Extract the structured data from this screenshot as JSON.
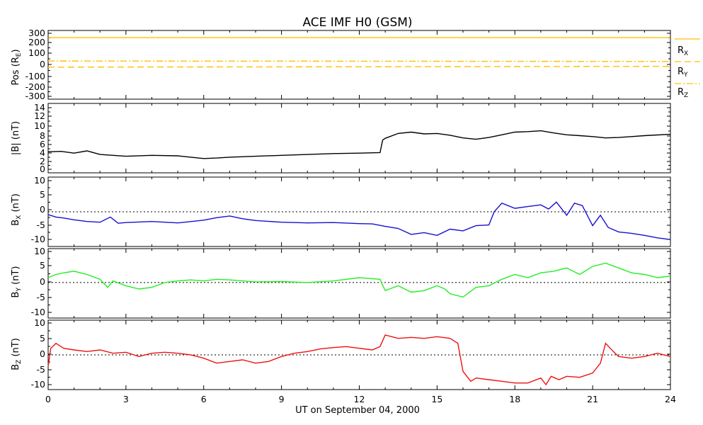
{
  "chart_data": {
    "type": "line",
    "title": "ACE IMF H0 (GSM)",
    "xlabel": "UT on September 04, 2000",
    "xlim": [
      0,
      24
    ],
    "xticks": [
      "0",
      "3",
      "6",
      "9",
      "12",
      "15",
      "18",
      "21",
      "24"
    ],
    "panels": [
      {
        "id": "pos",
        "ylabel": "Pos (R",
        "ylabel_sub": "E",
        "ylabel_tail": ")",
        "ylim": [
          -350,
          320
        ],
        "yticks": [
          "300",
          "200",
          "100",
          "0",
          "-100",
          "-200",
          "-300"
        ],
        "zero_line": false,
        "series": [
          {
            "name": "R",
            "sub": "X",
            "color": "#ffc000",
            "dash": "solid",
            "values": [
              [
                0,
                250
              ],
              [
                24,
                250
              ]
            ]
          },
          {
            "name": "R",
            "sub": "Y",
            "color": "#ffc000",
            "dash": "dashed",
            "values": [
              [
                0,
                -38
              ],
              [
                6,
                -36
              ],
              [
                12,
                -34
              ],
              [
                18,
                -32
              ],
              [
                24,
                -30
              ]
            ]
          },
          {
            "name": "R",
            "sub": "Z",
            "color": "#ffc000",
            "dash": "dashdot",
            "values": [
              [
                0,
                22
              ],
              [
                6,
                21
              ],
              [
                12,
                20
              ],
              [
                18,
                19
              ],
              [
                24,
                18
              ]
            ]
          }
        ]
      },
      {
        "id": "bmag",
        "ylabel": "|B| (nT)",
        "ylim": [
          -0.5,
          15
        ],
        "yticks": [
          "14",
          "12",
          "10",
          "8",
          "6",
          "4",
          "2",
          "0"
        ],
        "zero_line": false,
        "series": [
          {
            "color": "#000000",
            "values": [
              [
                0,
                4.2
              ],
              [
                0.5,
                4.3
              ],
              [
                1,
                3.9
              ],
              [
                1.5,
                4.4
              ],
              [
                2,
                3.6
              ],
              [
                3,
                3.2
              ],
              [
                4,
                3.4
              ],
              [
                5,
                3.3
              ],
              [
                5.5,
                3.0
              ],
              [
                6,
                2.7
              ],
              [
                6.5,
                2.8
              ],
              [
                7,
                3.0
              ],
              [
                8,
                3.2
              ],
              [
                9,
                3.4
              ],
              [
                10,
                3.6
              ],
              [
                11,
                3.8
              ],
              [
                12,
                3.9
              ],
              [
                12.8,
                4.0
              ],
              [
                12.9,
                6.8
              ],
              [
                13,
                7.2
              ],
              [
                13.5,
                8.3
              ],
              [
                14,
                8.6
              ],
              [
                14.5,
                8.2
              ],
              [
                15,
                8.3
              ],
              [
                15.5,
                7.9
              ],
              [
                16,
                7.3
              ],
              [
                16.5,
                7.0
              ],
              [
                17,
                7.4
              ],
              [
                17.5,
                8.0
              ],
              [
                18,
                8.6
              ],
              [
                18.5,
                8.7
              ],
              [
                19,
                8.9
              ],
              [
                19.5,
                8.4
              ],
              [
                20,
                8.0
              ],
              [
                20.5,
                7.8
              ],
              [
                21,
                7.6
              ],
              [
                21.5,
                7.3
              ],
              [
                22,
                7.4
              ],
              [
                23,
                7.8
              ],
              [
                24,
                8.1
              ]
            ]
          }
        ]
      },
      {
        "id": "bx",
        "ylabel": "B",
        "ylabel_sub": "X",
        "ylabel_tail": " (nT)",
        "ylim": [
          -10,
          10
        ],
        "yticks": [
          "10",
          "5",
          "0",
          "-5",
          "-10"
        ],
        "zero_line": true,
        "series": [
          {
            "color": "#1a0fcf",
            "values": [
              [
                0,
                -0.8
              ],
              [
                0.3,
                -1.5
              ],
              [
                0.6,
                -1.8
              ],
              [
                1,
                -2.3
              ],
              [
                1.5,
                -2.8
              ],
              [
                2,
                -3.0
              ],
              [
                2.4,
                -1.5
              ],
              [
                2.7,
                -3.3
              ],
              [
                3,
                -3.1
              ],
              [
                4,
                -2.8
              ],
              [
                5,
                -3.2
              ],
              [
                6,
                -2.4
              ],
              [
                6.5,
                -1.7
              ],
              [
                7,
                -1.2
              ],
              [
                7.5,
                -2.0
              ],
              [
                8,
                -2.5
              ],
              [
                9,
                -3.0
              ],
              [
                10,
                -3.2
              ],
              [
                11,
                -3.1
              ],
              [
                12,
                -3.4
              ],
              [
                12.5,
                -3.5
              ],
              [
                13,
                -4.2
              ],
              [
                13.5,
                -4.8
              ],
              [
                14,
                -6.5
              ],
              [
                14.5,
                -6.0
              ],
              [
                15,
                -6.8
              ],
              [
                15.5,
                -5.0
              ],
              [
                16,
                -5.5
              ],
              [
                16.5,
                -4.0
              ],
              [
                17,
                -3.8
              ],
              [
                17.2,
                0
              ],
              [
                17.5,
                2.5
              ],
              [
                18,
                1.0
              ],
              [
                18.5,
                1.5
              ],
              [
                19,
                2.0
              ],
              [
                19.3,
                0.8
              ],
              [
                19.6,
                2.8
              ],
              [
                20,
                -1.0
              ],
              [
                20.3,
                2.5
              ],
              [
                20.6,
                1.8
              ],
              [
                21,
                -4.0
              ],
              [
                21.3,
                -1.0
              ],
              [
                21.6,
                -4.5
              ],
              [
                22,
                -5.8
              ],
              [
                22.5,
                -6.2
              ],
              [
                23,
                -6.8
              ],
              [
                23.5,
                -7.5
              ],
              [
                24,
                -8.0
              ]
            ]
          }
        ]
      },
      {
        "id": "by",
        "ylabel": "B",
        "ylabel_sub": "Y",
        "ylabel_tail": " (nT)",
        "ylim": [
          -11,
          10.5
        ],
        "yticks": [
          "10",
          "5",
          "0",
          "-5",
          "-10"
        ],
        "zero_line": true,
        "series": [
          {
            "color": "#22ee22",
            "values": [
              [
                0,
                1.5
              ],
              [
                0.3,
                2.5
              ],
              [
                0.6,
                3.0
              ],
              [
                1,
                3.5
              ],
              [
                1.5,
                2.5
              ],
              [
                2,
                1.0
              ],
              [
                2.3,
                -1.5
              ],
              [
                2.5,
                0.5
              ],
              [
                3,
                -1.0
              ],
              [
                3.5,
                -2.0
              ],
              [
                4,
                -1.5
              ],
              [
                4.5,
                0
              ],
              [
                5,
                0.5
              ],
              [
                5.5,
                0.8
              ],
              [
                6,
                0.5
              ],
              [
                6.5,
                1.0
              ],
              [
                7,
                0.8
              ],
              [
                7.5,
                0.5
              ],
              [
                8,
                0.2
              ],
              [
                9,
                0.3
              ],
              [
                10,
                0.0
              ],
              [
                11,
                0.5
              ],
              [
                11.5,
                1.0
              ],
              [
                12,
                1.5
              ],
              [
                12.5,
                1.2
              ],
              [
                12.8,
                1.0
              ],
              [
                13,
                -2.5
              ],
              [
                13.5,
                -1.0
              ],
              [
                14,
                -3.0
              ],
              [
                14.5,
                -2.5
              ],
              [
                15,
                -1.0
              ],
              [
                15.3,
                -2.0
              ],
              [
                15.5,
                -3.5
              ],
              [
                16,
                -4.5
              ],
              [
                16.5,
                -1.5
              ],
              [
                17,
                -1.0
              ],
              [
                17.5,
                1.0
              ],
              [
                18,
                2.5
              ],
              [
                18.5,
                1.5
              ],
              [
                19,
                3.0
              ],
              [
                19.5,
                3.5
              ],
              [
                20,
                4.5
              ],
              [
                20.5,
                2.5
              ],
              [
                21,
                5.0
              ],
              [
                21.5,
                6.0
              ],
              [
                22,
                4.5
              ],
              [
                22.5,
                3.0
              ],
              [
                23,
                2.5
              ],
              [
                23.5,
                1.5
              ],
              [
                24,
                2.0
              ]
            ]
          }
        ]
      },
      {
        "id": "bz",
        "ylabel": "B",
        "ylabel_sub": "Z",
        "ylabel_tail": " (nT)",
        "ylim": [
          -10.5,
          10.5
        ],
        "yticks": [
          "10",
          "5",
          "0",
          "-5",
          "-10"
        ],
        "zero_line": true,
        "series": [
          {
            "color": "#ee1111",
            "values": [
              [
                0,
                -3.5
              ],
              [
                0.1,
                2.0
              ],
              [
                0.3,
                3.5
              ],
              [
                0.6,
                2.0
              ],
              [
                1,
                1.5
              ],
              [
                1.5,
                1.0
              ],
              [
                2,
                1.5
              ],
              [
                2.5,
                0.5
              ],
              [
                3,
                0.8
              ],
              [
                3.5,
                -0.5
              ],
              [
                4,
                0.5
              ],
              [
                4.5,
                0.8
              ],
              [
                5,
                0.5
              ],
              [
                5.5,
                0
              ],
              [
                6,
                -1.0
              ],
              [
                6.5,
                -2.5
              ],
              [
                7,
                -2.0
              ],
              [
                7.5,
                -1.5
              ],
              [
                8,
                -2.5
              ],
              [
                8.5,
                -2.0
              ],
              [
                9,
                -0.5
              ],
              [
                9.5,
                0.5
              ],
              [
                10,
                1.0
              ],
              [
                10.5,
                1.8
              ],
              [
                11,
                2.2
              ],
              [
                11.5,
                2.5
              ],
              [
                12,
                2.0
              ],
              [
                12.5,
                1.5
              ],
              [
                12.8,
                2.5
              ],
              [
                13,
                6.0
              ],
              [
                13.5,
                5.0
              ],
              [
                14,
                5.3
              ],
              [
                14.5,
                5.0
              ],
              [
                15,
                5.5
              ],
              [
                15.5,
                5.0
              ],
              [
                15.8,
                3.5
              ],
              [
                16,
                -5.0
              ],
              [
                16.3,
                -8.0
              ],
              [
                16.5,
                -7.0
              ],
              [
                17,
                -7.5
              ],
              [
                17.5,
                -8.0
              ],
              [
                18,
                -8.5
              ],
              [
                18.5,
                -8.5
              ],
              [
                19,
                -7.0
              ],
              [
                19.2,
                -9.0
              ],
              [
                19.4,
                -6.5
              ],
              [
                19.7,
                -7.5
              ],
              [
                20,
                -6.5
              ],
              [
                20.5,
                -6.8
              ],
              [
                21,
                -5.5
              ],
              [
                21.3,
                -2.5
              ],
              [
                21.5,
                3.5
              ],
              [
                21.8,
                1.0
              ],
              [
                22,
                -0.5
              ],
              [
                22.5,
                -1.0
              ],
              [
                23,
                -0.5
              ],
              [
                23.5,
                0.5
              ],
              [
                24,
                -0.5
              ]
            ]
          }
        ]
      }
    ]
  }
}
